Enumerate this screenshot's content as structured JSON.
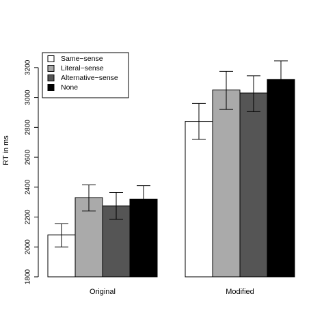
{
  "chart_data": {
    "type": "bar",
    "title": "",
    "xlabel": "",
    "ylabel": "RT in ms",
    "ylim": [
      1800,
      3300
    ],
    "yticks": [
      1800,
      2000,
      2200,
      2400,
      2600,
      2800,
      3000,
      3200
    ],
    "categories": [
      "Original",
      "Modified"
    ],
    "series": [
      {
        "name": "Same−sense",
        "color": "#ffffff",
        "values": [
          2080,
          2840
        ],
        "err_low": [
          2000,
          2720
        ],
        "err_high": [
          2155,
          2960
        ]
      },
      {
        "name": "Literal−sense",
        "color": "#aaaaaa",
        "values": [
          2330,
          3050
        ],
        "err_low": [
          2240,
          2920
        ],
        "err_high": [
          2415,
          3175
        ]
      },
      {
        "name": "Alternative−sense",
        "color": "#555555",
        "values": [
          2275,
          3030
        ],
        "err_low": [
          2185,
          2905
        ],
        "err_high": [
          2365,
          3145
        ]
      },
      {
        "name": "None",
        "color": "#000000",
        "values": [
          2320,
          3120
        ],
        "err_low": [
          2230,
          2990
        ],
        "err_high": [
          2410,
          3245
        ]
      }
    ],
    "legend_position": "top-left",
    "grid": false
  }
}
